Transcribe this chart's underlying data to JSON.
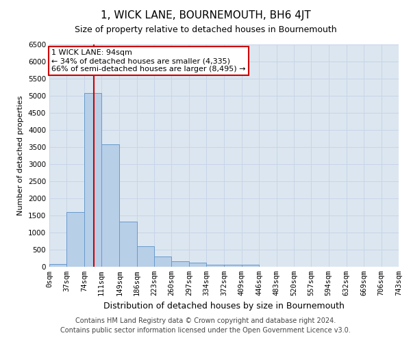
{
  "title": "1, WICK LANE, BOURNEMOUTH, BH6 4JT",
  "subtitle": "Size of property relative to detached houses in Bournemouth",
  "xlabel": "Distribution of detached houses by size in Bournemouth",
  "ylabel": "Number of detached properties",
  "footer_line1": "Contains HM Land Registry data © Crown copyright and database right 2024.",
  "footer_line2": "Contains public sector information licensed under the Open Government Licence v3.0.",
  "bar_edges": [
    0,
    37,
    74,
    111,
    149,
    186,
    223,
    260,
    297,
    334,
    372,
    409,
    446,
    483,
    520,
    557,
    594,
    632,
    669,
    706,
    743
  ],
  "bar_heights": [
    75,
    1600,
    5075,
    3575,
    1325,
    600,
    300,
    160,
    125,
    60,
    55,
    70,
    0,
    0,
    0,
    0,
    0,
    0,
    0,
    0
  ],
  "bar_color": "#b8cfe8",
  "bar_edge_color": "#6699cc",
  "property_value": 94,
  "red_line_color": "#cc0000",
  "annotation_text": "1 WICK LANE: 94sqm\n← 34% of detached houses are smaller (4,335)\n66% of semi-detached houses are larger (8,495) →",
  "annotation_box_edge_color": "#cc0000",
  "ylim": [
    0,
    6500
  ],
  "yticks": [
    0,
    500,
    1000,
    1500,
    2000,
    2500,
    3000,
    3500,
    4000,
    4500,
    5000,
    5500,
    6000,
    6500
  ],
  "grid_color": "#c8d4e8",
  "background_color": "#dce6f0",
  "title_fontsize": 11,
  "subtitle_fontsize": 9,
  "xlabel_fontsize": 9,
  "ylabel_fontsize": 8,
  "tick_labelsize": 7.5,
  "annotation_fontsize": 8,
  "footer_fontsize": 7
}
